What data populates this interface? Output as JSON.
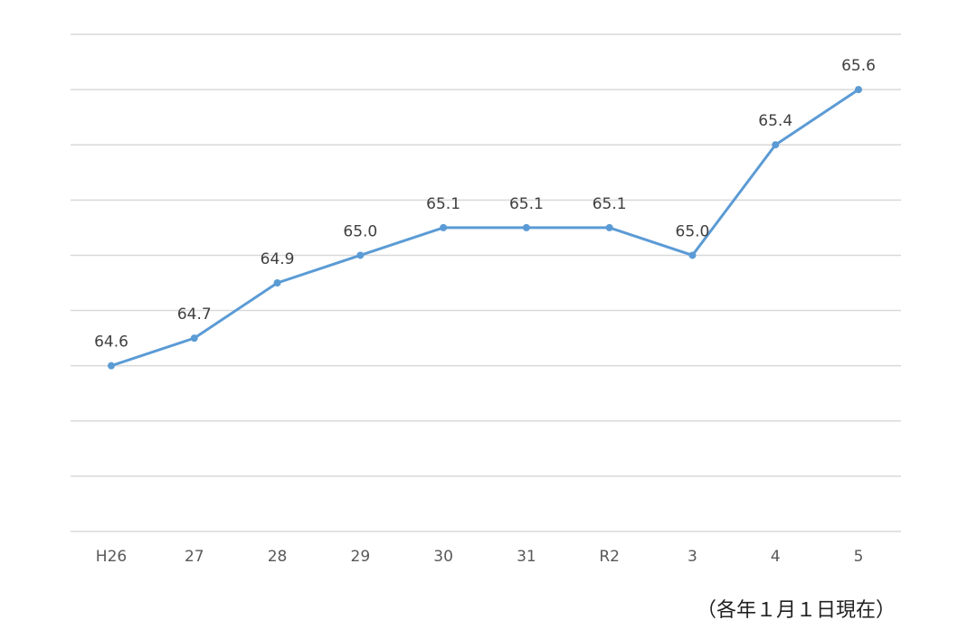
{
  "chart_data": {
    "type": "line",
    "categories": [
      "H26",
      "27",
      "28",
      "29",
      "30",
      "31",
      "R2",
      "3",
      "4",
      "5"
    ],
    "series": [
      {
        "values": [
          64.6,
          64.7,
          64.9,
          65.0,
          65.1,
          65.1,
          65.1,
          65.0,
          65.4,
          65.6
        ],
        "labels": [
          "64.6",
          "64.7",
          "64.9",
          "65.0",
          "65.1",
          "65.1",
          "65.1",
          "65.0",
          "65.4",
          "65.6"
        ]
      }
    ],
    "ylim": [
      64.0,
      65.8
    ],
    "y_grid_step": 0.2,
    "grid": true,
    "line_color": "#5b9bd5",
    "grid_color": "#d9d9d9",
    "footnote": "（各年１月１日現在）"
  }
}
